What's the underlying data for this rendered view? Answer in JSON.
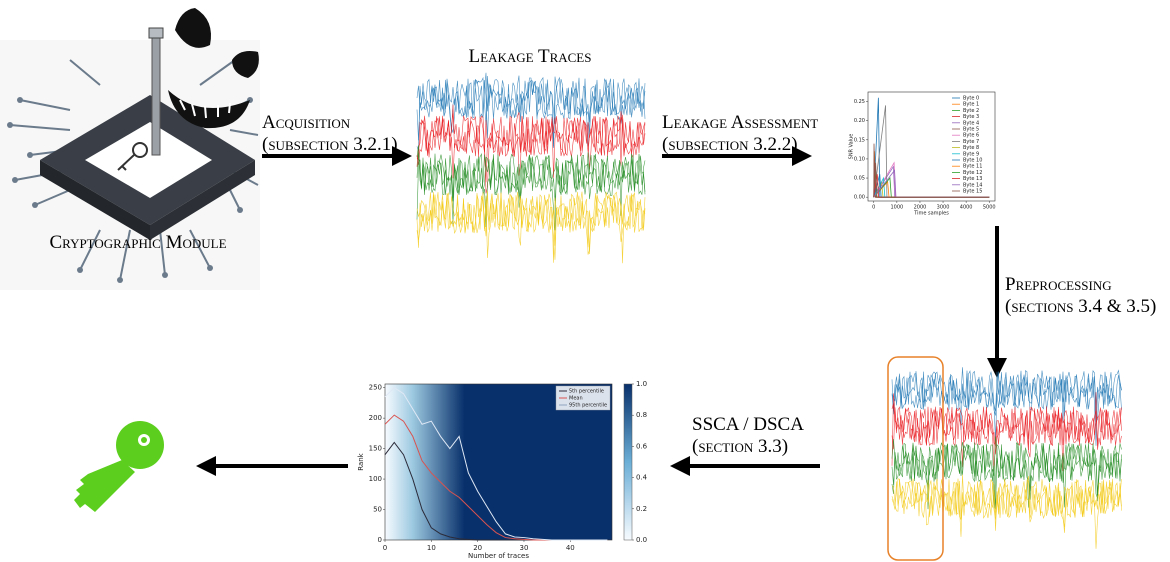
{
  "nodes": {
    "module": {
      "label": "Cryptographic Module"
    },
    "traces": {
      "title": "Leakage Traces"
    }
  },
  "edges": [
    {
      "label": "Acquisition",
      "ref": "(subsection 3.2.1)"
    },
    {
      "label": "Leakage Assessment",
      "ref": "(subsection 3.2.2)"
    },
    {
      "label": "Preprocessing",
      "ref": "(sections 3.4 & 3.5)"
    },
    {
      "label": "SSCA / DSCA",
      "ref": "(section 3.3)"
    }
  ],
  "snr_chart": {
    "type": "line",
    "ylabel": "SNR Value",
    "xlabel": "Time samples",
    "xlim": [
      -250,
      5250
    ],
    "ylim": [
      -0.01,
      0.275
    ],
    "xticks": [
      0,
      1000,
      2000,
      3000,
      4000,
      5000
    ],
    "yticks": [
      {
        "value": 0,
        "label": "0.00"
      },
      {
        "value": 0.05,
        "label": "0.05"
      },
      {
        "value": 0.1,
        "label": "0.10"
      },
      {
        "value": 0.15,
        "label": "0.15"
      },
      {
        "value": 0.2,
        "label": "0.20"
      },
      {
        "value": 0.25,
        "label": "0.25"
      }
    ],
    "series": [
      {
        "name": "Byte 0",
        "color": "#1f77b4",
        "x": [
          0,
          200,
          260,
          5000
        ],
        "values": [
          0,
          0.26,
          0,
          0
        ]
      },
      {
        "name": "Byte 1",
        "color": "#ff7f0e",
        "x": [
          0,
          30,
          90,
          5000
        ],
        "values": [
          0,
          0.12,
          0,
          0
        ]
      },
      {
        "name": "Byte 2",
        "color": "#2ca02c",
        "x": [
          0,
          60,
          120,
          5000
        ],
        "values": [
          0,
          0.08,
          0,
          0
        ]
      },
      {
        "name": "Byte 3",
        "color": "#d62728",
        "x": [
          0,
          20,
          80,
          5000
        ],
        "values": [
          0,
          0.1,
          0,
          0
        ]
      },
      {
        "name": "Byte 4",
        "color": "#9467bd",
        "x": [
          0,
          850,
          910,
          5000
        ],
        "values": [
          0,
          0.08,
          0,
          0
        ]
      },
      {
        "name": "Byte 5",
        "color": "#8c564b",
        "x": [
          0,
          10,
          70,
          5000
        ],
        "values": [
          0,
          0.14,
          0,
          0
        ]
      },
      {
        "name": "Byte 6",
        "color": "#e377c2",
        "x": [
          0,
          880,
          940,
          5000
        ],
        "values": [
          0,
          0.09,
          0,
          0
        ]
      },
      {
        "name": "Byte 7",
        "color": "#7f7f7f",
        "x": [
          0,
          510,
          570,
          5000
        ],
        "values": [
          0,
          0.24,
          0,
          0
        ]
      },
      {
        "name": "Byte 8",
        "color": "#bcbd22",
        "x": [
          0,
          340,
          400,
          5000
        ],
        "values": [
          0,
          0.04,
          0,
          0
        ]
      },
      {
        "name": "Byte 9",
        "color": "#17becf",
        "x": [
          0,
          420,
          480,
          5000
        ],
        "values": [
          0,
          0.05,
          0,
          0
        ]
      },
      {
        "name": "Byte 10",
        "color": "#1f77b4",
        "x": [
          0,
          260,
          320,
          5000
        ],
        "values": [
          0,
          0.06,
          0,
          0
        ]
      },
      {
        "name": "Byte 11",
        "color": "#ff7f0e",
        "x": [
          0,
          600,
          660,
          5000
        ],
        "values": [
          0,
          0.04,
          0,
          0
        ]
      },
      {
        "name": "Byte 12",
        "color": "#2ca02c",
        "x": [
          0,
          700,
          760,
          5000
        ],
        "values": [
          0,
          0.05,
          0,
          0
        ]
      },
      {
        "name": "Byte 13",
        "color": "#d62728",
        "x": [
          0,
          150,
          210,
          5000
        ],
        "values": [
          0,
          0.06,
          0,
          0
        ]
      },
      {
        "name": "Byte 14",
        "color": "#9467bd",
        "x": [
          0,
          900,
          960,
          5000
        ],
        "values": [
          0,
          0.07,
          0,
          0
        ]
      },
      {
        "name": "Byte 15",
        "color": "#8c564b",
        "x": [
          0,
          80,
          140,
          5000
        ],
        "values": [
          0,
          0.09,
          0,
          0
        ]
      }
    ]
  },
  "rank_chart": {
    "type": "line",
    "ylabel": "Rank",
    "xlabel": "Number of traces",
    "xlim": [
      0,
      49
    ],
    "ylim": [
      0,
      256
    ],
    "xticks": [
      0,
      10,
      20,
      30,
      40
    ],
    "yticks": [
      0,
      50,
      100,
      150,
      200,
      250
    ],
    "clim": [
      0,
      1
    ],
    "cticks": [
      {
        "value": 0,
        "label": "0.0"
      },
      {
        "value": 0.2,
        "label": "0.2"
      },
      {
        "value": 0.4,
        "label": "0.4"
      },
      {
        "value": 0.6,
        "label": "0.6"
      },
      {
        "value": 0.8,
        "label": "0.8"
      },
      {
        "value": 1,
        "label": "1.0"
      }
    ],
    "x": [
      0,
      2,
      4,
      6,
      8,
      10,
      12,
      14,
      16,
      18,
      20,
      22,
      24,
      26,
      28,
      30,
      32,
      34,
      36,
      38,
      40,
      42,
      44,
      46,
      48
    ],
    "series": [
      {
        "name": "5th percentile",
        "color": "#2b2b3a",
        "values": [
          140,
          160,
          140,
          100,
          50,
          20,
          10,
          5,
          2,
          1,
          0,
          0,
          0,
          0,
          0,
          0,
          0,
          0,
          0,
          0,
          0,
          0,
          0,
          0,
          0
        ]
      },
      {
        "name": "Mean",
        "color": "#d9534f",
        "values": [
          190,
          205,
          195,
          170,
          130,
          110,
          95,
          80,
          70,
          55,
          40,
          25,
          12,
          4,
          2,
          1,
          0,
          0,
          0,
          0,
          0,
          0,
          0,
          0,
          0
        ]
      },
      {
        "name": "95th percentile",
        "color": "#dfe8f5",
        "values": [
          235,
          250,
          240,
          215,
          190,
          195,
          170,
          150,
          170,
          110,
          80,
          55,
          30,
          10,
          5,
          4,
          2,
          1,
          0,
          0,
          0,
          0,
          0,
          0,
          0
        ]
      }
    ]
  }
}
